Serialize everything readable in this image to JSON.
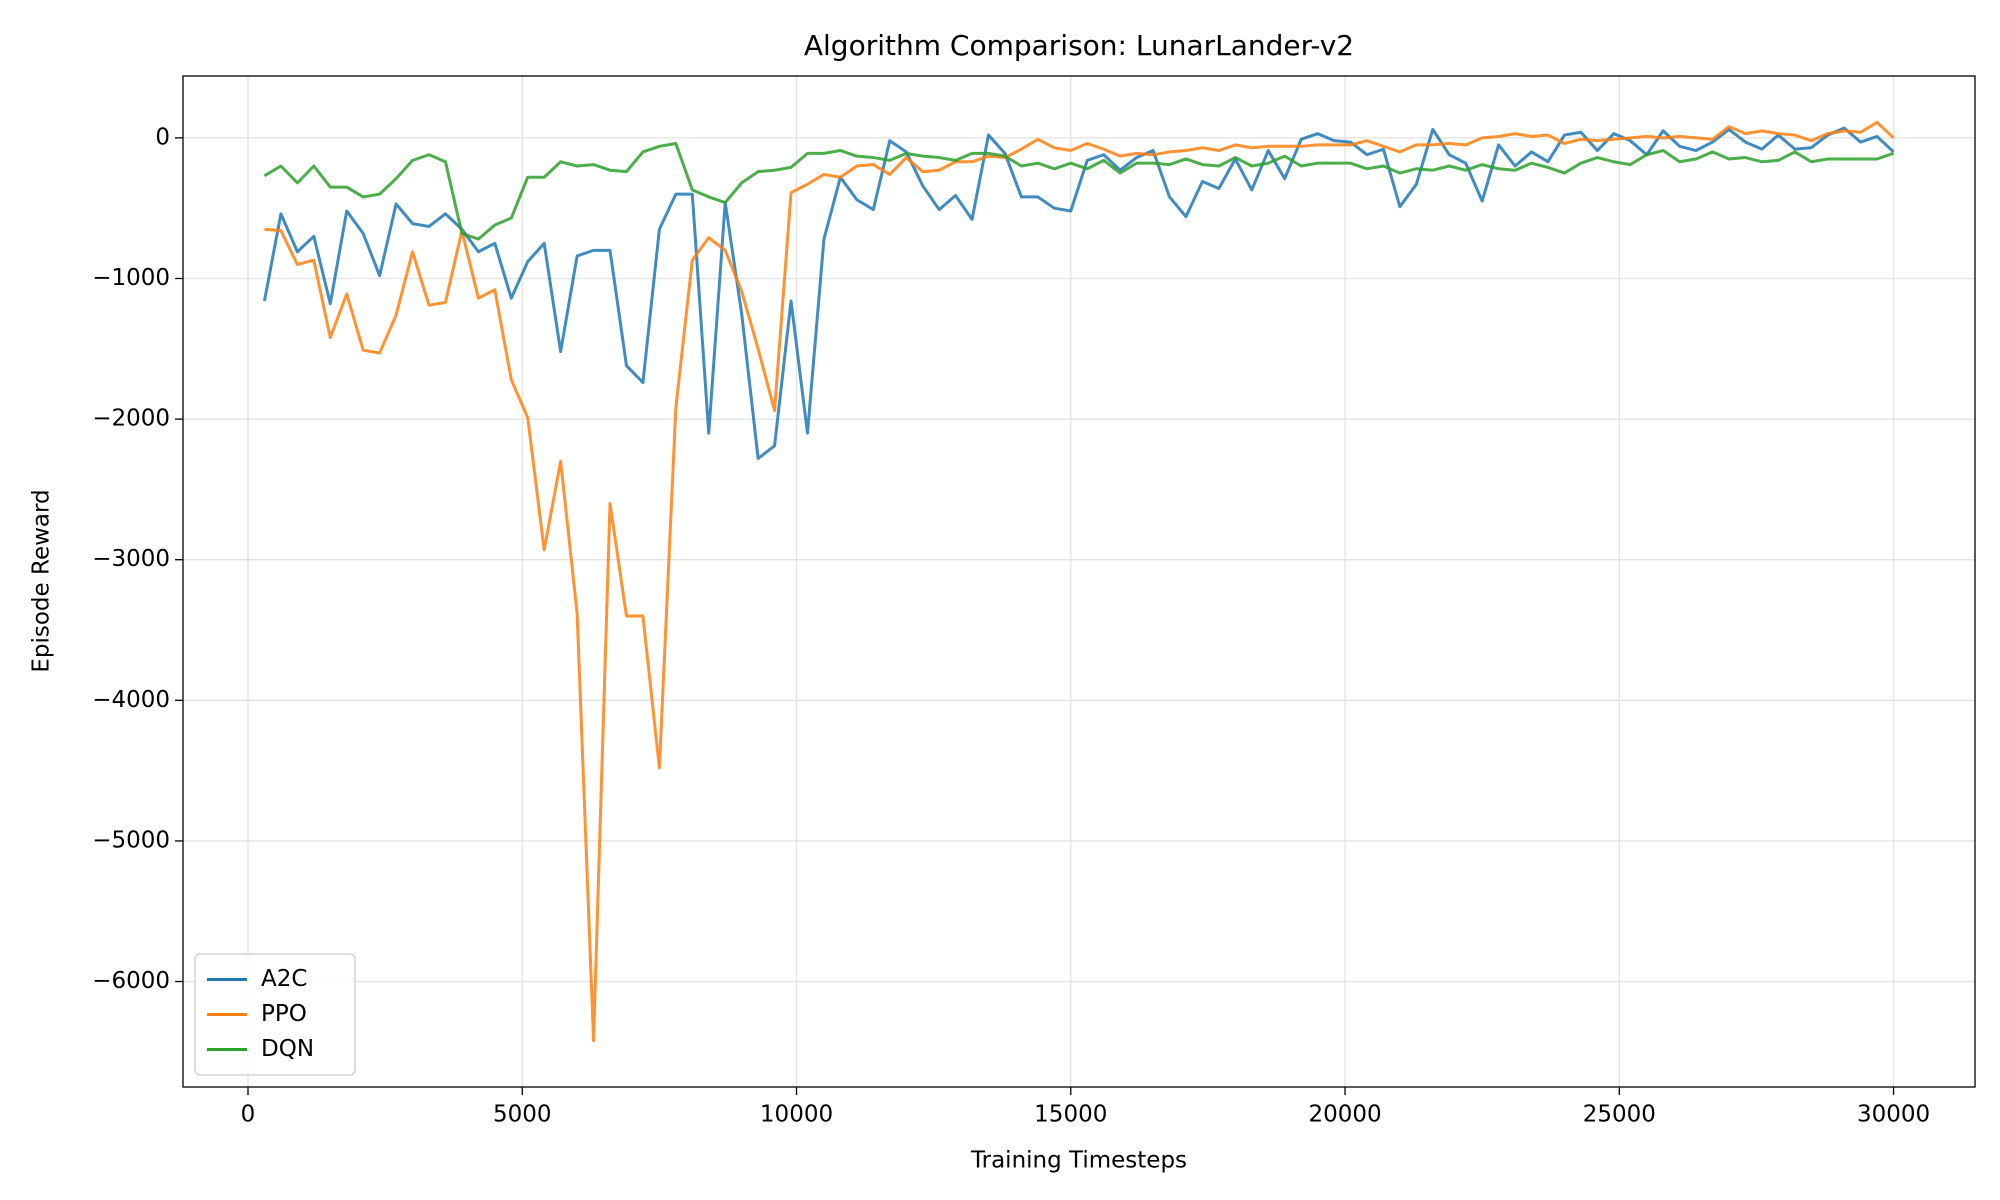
{
  "chart_data": {
    "type": "line",
    "title": "Algorithm Comparison: LunarLander-v2",
    "x_label": "Training Timesteps",
    "y_label": "Episode Reward",
    "x": [
      300,
      600,
      900,
      1200,
      1500,
      1800,
      2100,
      2400,
      2700,
      3000,
      3300,
      3600,
      3900,
      4200,
      4500,
      4800,
      5100,
      5400,
      5700,
      6000,
      6300,
      6600,
      6900,
      7200,
      7500,
      7800,
      8100,
      8400,
      8700,
      9000,
      9300,
      9600,
      9900,
      10200,
      10500,
      10800,
      11100,
      11400,
      11700,
      12000,
      12300,
      12600,
      12900,
      13200,
      13500,
      13800,
      14100,
      14400,
      14700,
      15000,
      15300,
      15600,
      15900,
      16200,
      16500,
      16800,
      17100,
      17400,
      17700,
      18000,
      18300,
      18600,
      18900,
      19200,
      19500,
      19800,
      20100,
      20400,
      20700,
      21000,
      21300,
      21600,
      21900,
      22200,
      22500,
      22800,
      23100,
      23400,
      23700,
      24000,
      24300,
      24600,
      24900,
      25200,
      25500,
      25800,
      26100,
      26400,
      26700,
      27000,
      27300,
      27600,
      27900,
      28200,
      28500,
      28800,
      29100,
      29400,
      29700,
      30000
    ],
    "series": [
      {
        "name": "A2C",
        "color": "#1f77b4",
        "values": [
          -1160,
          -540,
          -810,
          -700,
          -1180,
          -520,
          -680,
          -980,
          -470,
          -610,
          -630,
          -540,
          -650,
          -810,
          -750,
          -1140,
          -880,
          -750,
          -1520,
          -840,
          -800,
          -800,
          -1620,
          -1740,
          -650,
          -400,
          -400,
          -2100,
          -460,
          -1250,
          -2280,
          -2190,
          -1160,
          -2100,
          -720,
          -280,
          -440,
          -510,
          -20,
          -100,
          -340,
          -510,
          -410,
          -580,
          20,
          -110,
          -420,
          -420,
          -500,
          -520,
          -160,
          -120,
          -230,
          -140,
          -90,
          -420,
          -560,
          -310,
          -360,
          -150,
          -370,
          -90,
          -290,
          -10,
          30,
          -20,
          -30,
          -120,
          -80,
          -490,
          -330,
          60,
          -120,
          -180,
          -450,
          -50,
          -200,
          -100,
          -170,
          20,
          40,
          -90,
          30,
          -20,
          -120,
          50,
          -60,
          -90,
          -30,
          60,
          -30,
          -80,
          20,
          -80,
          -70,
          20,
          70,
          -30,
          10,
          -100
        ]
      },
      {
        "name": "PPO",
        "color": "#ff7f0e",
        "values": [
          -650,
          -660,
          -900,
          -870,
          -1420,
          -1110,
          -1510,
          -1530,
          -1260,
          -810,
          -1190,
          -1170,
          -660,
          -1140,
          -1080,
          -1720,
          -1990,
          -2930,
          -2300,
          -3380,
          -6420,
          -2600,
          -3400,
          -3400,
          -4480,
          -1920,
          -870,
          -710,
          -800,
          -1090,
          -1500,
          -1940,
          -390,
          -330,
          -260,
          -280,
          -200,
          -190,
          -260,
          -140,
          -240,
          -230,
          -170,
          -170,
          -130,
          -140,
          -80,
          -10,
          -70,
          -90,
          -40,
          -80,
          -130,
          -110,
          -120,
          -100,
          -90,
          -70,
          -90,
          -50,
          -70,
          -60,
          -60,
          -60,
          -50,
          -50,
          -50,
          -20,
          -60,
          -100,
          -50,
          -50,
          -40,
          -50,
          0,
          10,
          30,
          10,
          20,
          -40,
          -10,
          -20,
          -10,
          0,
          10,
          0,
          10,
          0,
          -10,
          80,
          30,
          50,
          30,
          20,
          -20,
          30,
          50,
          40,
          110,
          0
        ]
      },
      {
        "name": "DQN",
        "color": "#2ca02c",
        "values": [
          -270,
          -200,
          -320,
          -200,
          -350,
          -350,
          -420,
          -400,
          -290,
          -160,
          -120,
          -170,
          -680,
          -720,
          -620,
          -570,
          -280,
          -280,
          -170,
          -200,
          -190,
          -230,
          -240,
          -100,
          -60,
          -40,
          -370,
          -420,
          -460,
          -320,
          -240,
          -230,
          -210,
          -110,
          -110,
          -90,
          -130,
          -140,
          -160,
          -110,
          -130,
          -140,
          -160,
          -110,
          -110,
          -130,
          -200,
          -180,
          -220,
          -180,
          -220,
          -160,
          -250,
          -180,
          -180,
          -190,
          -150,
          -190,
          -200,
          -140,
          -200,
          -180,
          -130,
          -200,
          -180,
          -180,
          -180,
          -220,
          -200,
          -250,
          -220,
          -230,
          -200,
          -230,
          -190,
          -220,
          -230,
          -180,
          -210,
          -250,
          -180,
          -140,
          -170,
          -190,
          -120,
          -90,
          -170,
          -150,
          -100,
          -150,
          -140,
          -170,
          -160,
          -100,
          -170,
          -150,
          -150,
          -150,
          -150,
          -110
        ]
      }
    ],
    "xlim": [
      -1185,
      31485
    ],
    "ylim": [
      -6750,
      440
    ],
    "xticks": [
      0,
      5000,
      10000,
      15000,
      20000,
      25000,
      30000
    ],
    "yticks": [
      {
        "value": -6000,
        "label": "−6000"
      },
      {
        "value": -5000,
        "label": "−5000"
      },
      {
        "value": -4000,
        "label": "−4000"
      },
      {
        "value": -3000,
        "label": "−3000"
      },
      {
        "value": -2000,
        "label": "−2000"
      },
      {
        "value": -1000,
        "label": "−1000"
      },
      0
    ],
    "grid": true,
    "legend": "lower left"
  }
}
